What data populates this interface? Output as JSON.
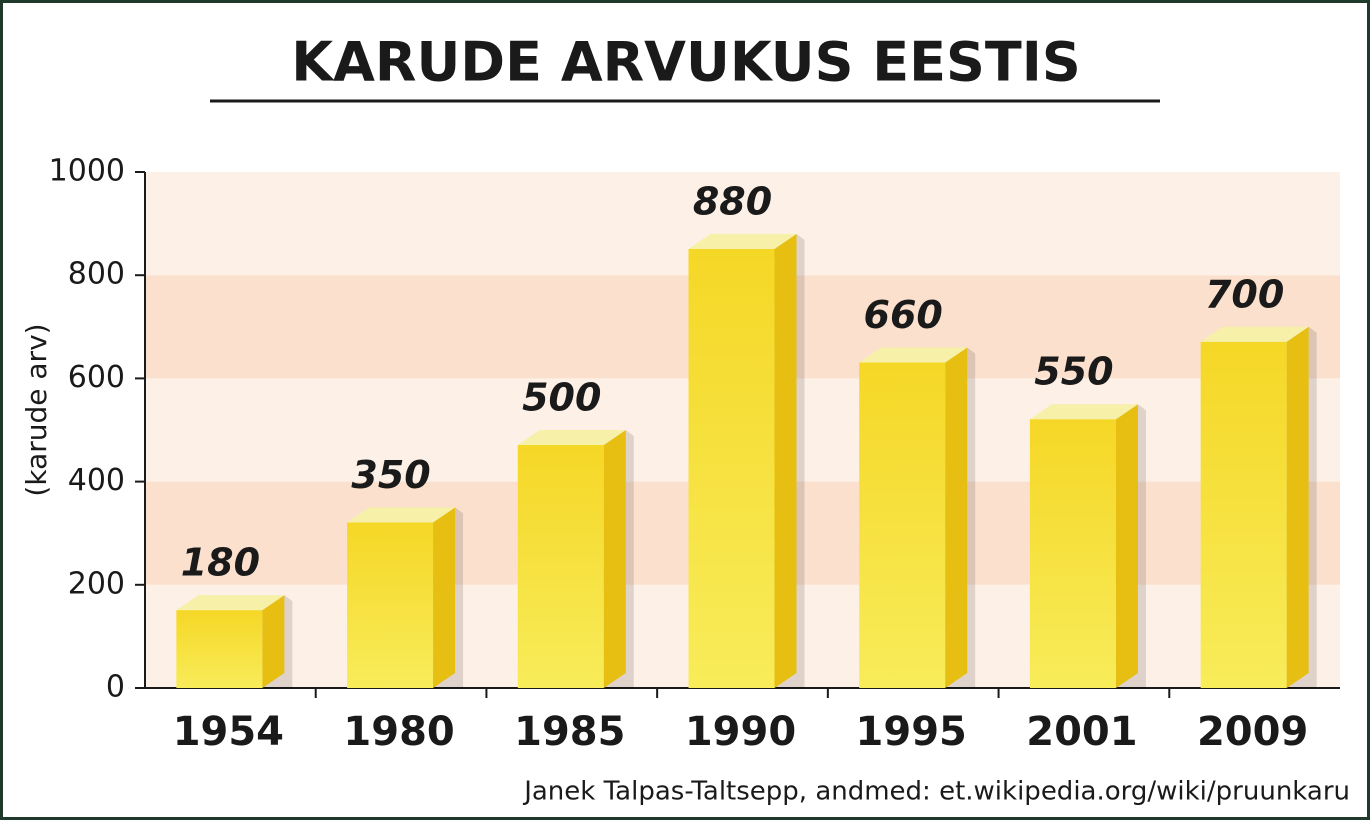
{
  "chart_data": {
    "type": "bar",
    "title": "KARUDE ARVUKUS EESTIS",
    "ylabel": "(karude arv)",
    "source": "Janek Talpas-Taltsepp, andmed: et.wikipedia.org/wiki/pruunkaru",
    "categories": [
      "1954",
      "1980",
      "1985",
      "1990",
      "1995",
      "2001",
      "2009"
    ],
    "values": [
      180,
      350,
      500,
      880,
      660,
      550,
      700
    ],
    "color": "#f5dc2a",
    "ylim": [
      0,
      1000
    ],
    "yticks": [
      0,
      200,
      400,
      600,
      800,
      1000
    ],
    "grid": true
  }
}
